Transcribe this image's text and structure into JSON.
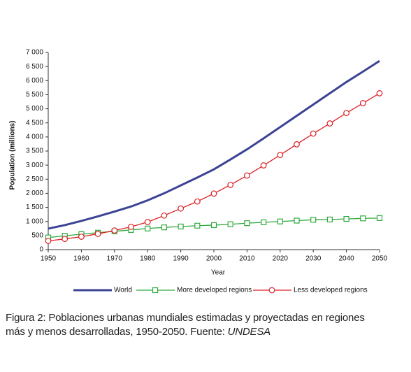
{
  "chart_data": {
    "type": "line",
    "x_label": "Year",
    "y_label": "Population (millions)",
    "x": [
      1950,
      1955,
      1960,
      1965,
      1970,
      1975,
      1980,
      1985,
      1990,
      1995,
      2000,
      2005,
      2010,
      2015,
      2020,
      2025,
      2030,
      2035,
      2040,
      2045,
      2050
    ],
    "series": [
      {
        "name": "World",
        "color": "#3b4394",
        "marker": "none",
        "values": [
          746,
          870,
          1020,
          1180,
          1350,
          1530,
          1750,
          2000,
          2280,
          2560,
          2850,
          3200,
          3560,
          3950,
          4350,
          4750,
          5150,
          5550,
          5950,
          6320,
          6700
        ]
      },
      {
        "name": "More developed regions",
        "color": "#2eaa3c",
        "marker": "square",
        "values": [
          430,
          490,
          550,
          600,
          650,
          700,
          750,
          790,
          820,
          850,
          870,
          900,
          940,
          970,
          1000,
          1030,
          1060,
          1070,
          1090,
          1110,
          1120
        ]
      },
      {
        "name": "Less developed regions",
        "color": "#dd2026",
        "marker": "circle",
        "values": [
          310,
          380,
          460,
          560,
          680,
          810,
          980,
          1210,
          1460,
          1710,
          1990,
          2300,
          2630,
          2990,
          3360,
          3740,
          4120,
          4480,
          4850,
          5200,
          5550
        ]
      }
    ],
    "xlim": [
      1950,
      2050
    ],
    "xticks": [
      1950,
      1960,
      1970,
      1980,
      1990,
      2000,
      2010,
      2020,
      2030,
      2040,
      2050
    ],
    "ylim": [
      0,
      7000
    ],
    "yticks": [
      0,
      500,
      {
        "value": 1000,
        "label": "1 000"
      },
      {
        "value": 1500,
        "label": "1 500"
      },
      {
        "value": 2000,
        "label": "2 000"
      },
      {
        "value": 2500,
        "label": "2 500"
      },
      {
        "value": 3000,
        "label": "3 000"
      },
      {
        "value": 3500,
        "label": "3 500"
      },
      {
        "value": 4000,
        "label": "4 000"
      },
      {
        "value": 4500,
        "label": "4 500"
      },
      {
        "value": 5000,
        "label": "5 000"
      },
      {
        "value": 5500,
        "label": "5 500"
      },
      {
        "value": 6000,
        "label": "6 000"
      },
      {
        "value": 6500,
        "label": "6 500"
      },
      {
        "value": 7000,
        "label": "7 000"
      }
    ],
    "caption": {
      "text": "Figura 2: Poblaciones urbanas mundiales estimadas y proyectadas en regiones más y menos desarrolladas, 1950-2050. Fuente:",
      "source": "UNDESA"
    }
  }
}
